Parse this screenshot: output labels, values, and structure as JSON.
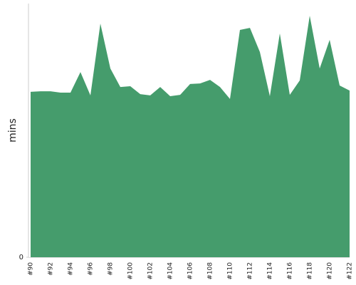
{
  "chart_data": {
    "type": "area",
    "y_label": "mins",
    "color": "#459c6c",
    "categories": [
      "#90",
      null,
      "#92",
      null,
      "#94",
      null,
      "#96",
      null,
      "#98",
      null,
      "#100",
      null,
      "#102",
      null,
      "#104",
      null,
      "#106",
      null,
      "#108",
      null,
      "#110",
      null,
      "#112",
      null,
      "#114",
      null,
      "#116",
      null,
      "#118",
      null,
      "#120",
      null,
      "#122"
    ],
    "values": [
      65.2,
      65.4,
      65.4,
      64.9,
      64.9,
      73.0,
      63.8,
      92.1,
      74.4,
      67.1,
      67.4,
      64.3,
      63.8,
      67.1,
      63.5,
      64.0,
      68.3,
      68.5,
      69.9,
      67.1,
      62.4,
      89.6,
      90.4,
      80.9,
      63.5,
      88.2,
      64.0,
      69.7,
      95.2,
      74.4,
      85.7,
      67.7,
      65.7
    ],
    "ylim": [
      0,
      100
    ],
    "yticks": [
      0
    ]
  }
}
